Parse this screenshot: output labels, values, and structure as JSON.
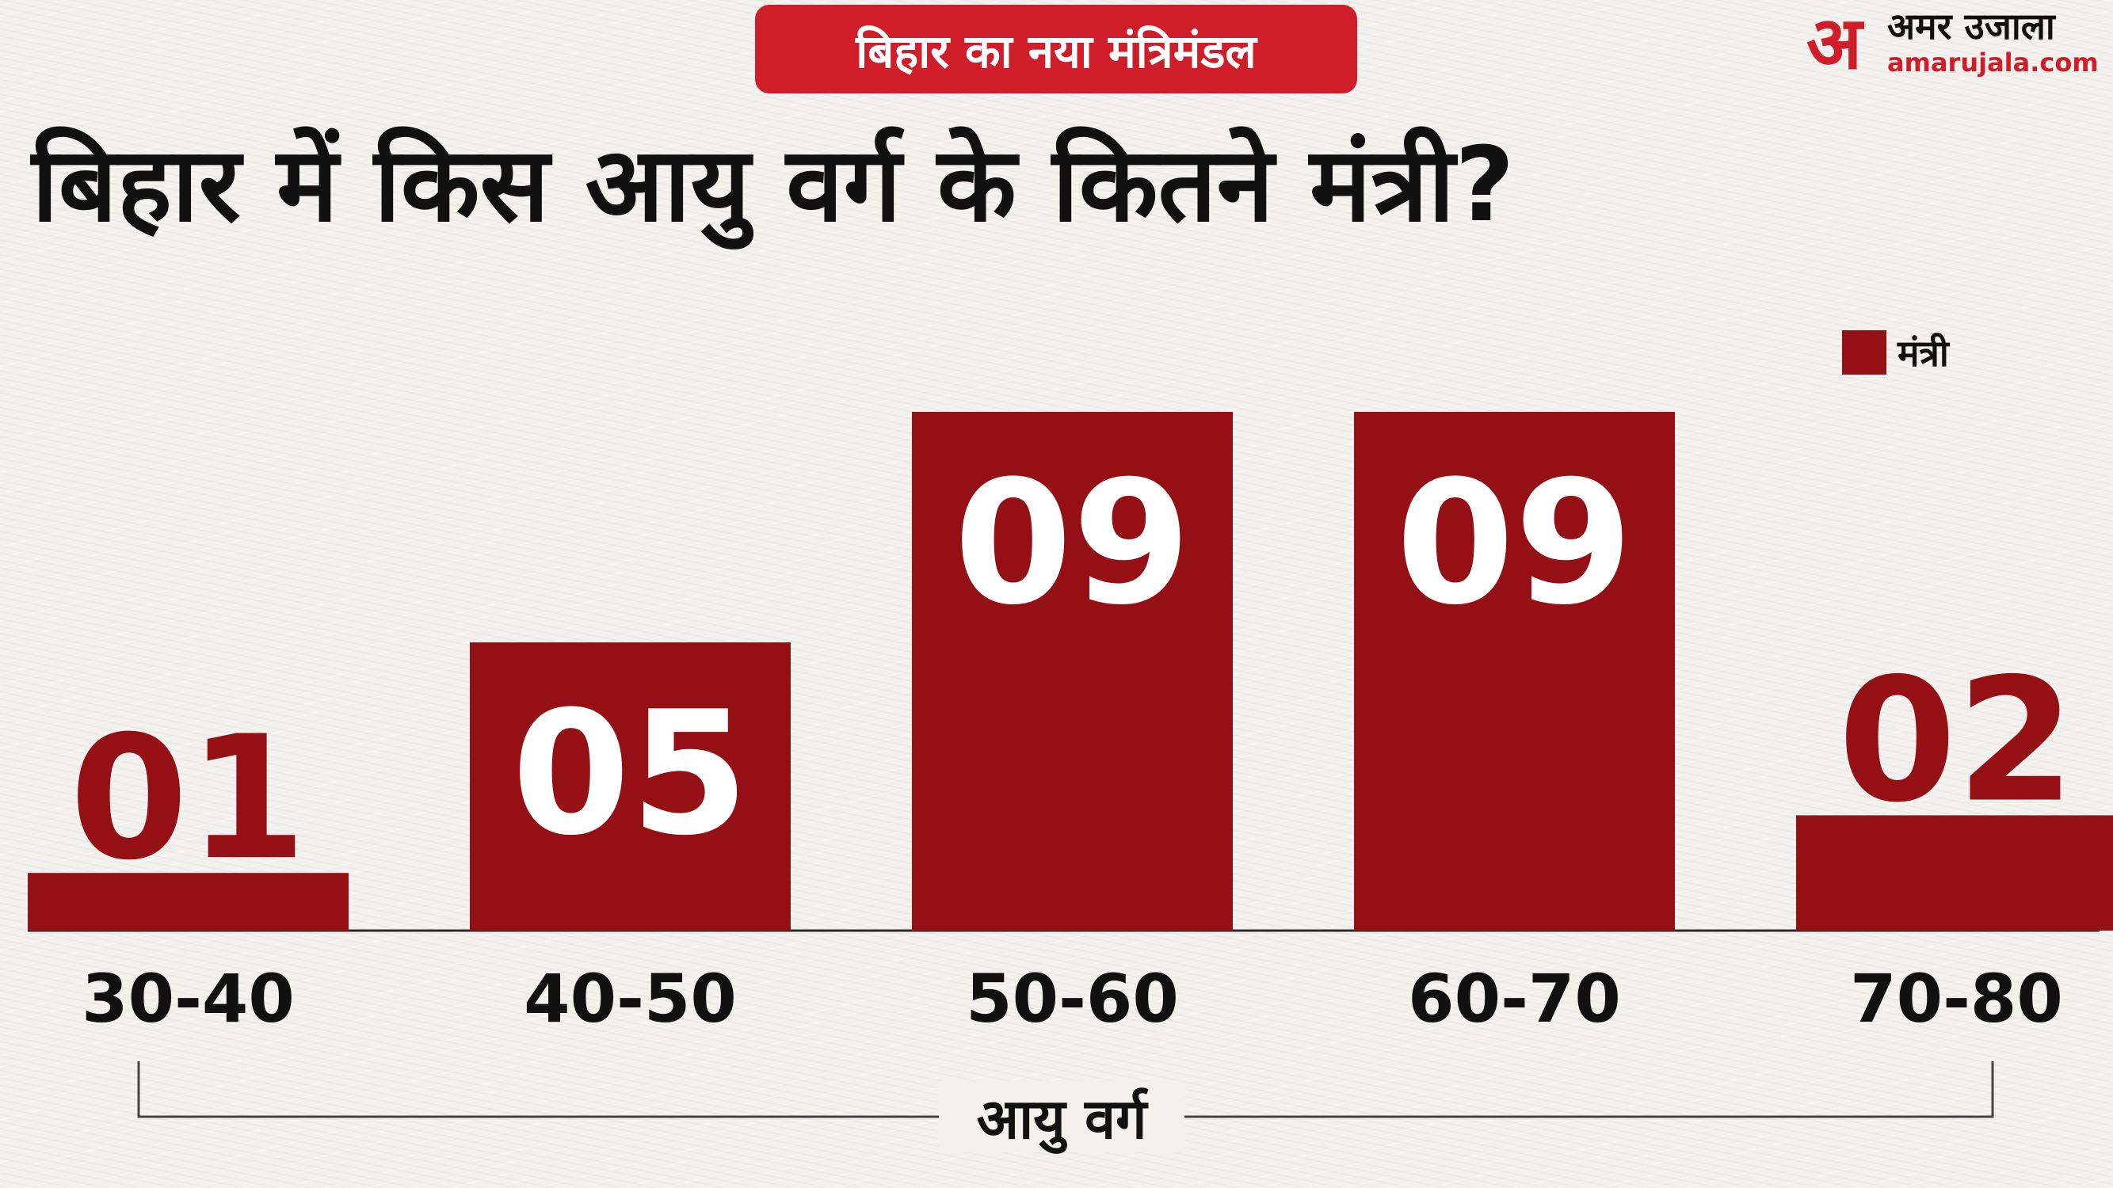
{
  "header": {
    "tag": "बिहार का नया मंत्रिमंडल",
    "title": "बिहार में किस आयु वर्ग के कितने मंत्री?"
  },
  "logo": {
    "mark": "अ",
    "name": "अमर उजाला",
    "url": "amarujala.com"
  },
  "colors": {
    "bar": "#951015",
    "accent": "#cf1e2a",
    "value_on_bar": "#ffffff",
    "value_above_bar": "#951015"
  },
  "chart_data": {
    "type": "bar",
    "title": "बिहार में किस आयु वर्ग के कितने मंत्री?",
    "categories": [
      "30-40",
      "40-50",
      "50-60",
      "60-70",
      "70-80"
    ],
    "series": [
      {
        "name": "मंत्री",
        "values": [
          1,
          5,
          9,
          9,
          2
        ]
      }
    ],
    "value_labels": [
      "01",
      "05",
      "09",
      "09",
      "02"
    ],
    "xlabel": "आयु वर्ग",
    "ylabel": "",
    "ylim": [
      0,
      9
    ],
    "grid": false,
    "legend": "top-right"
  }
}
